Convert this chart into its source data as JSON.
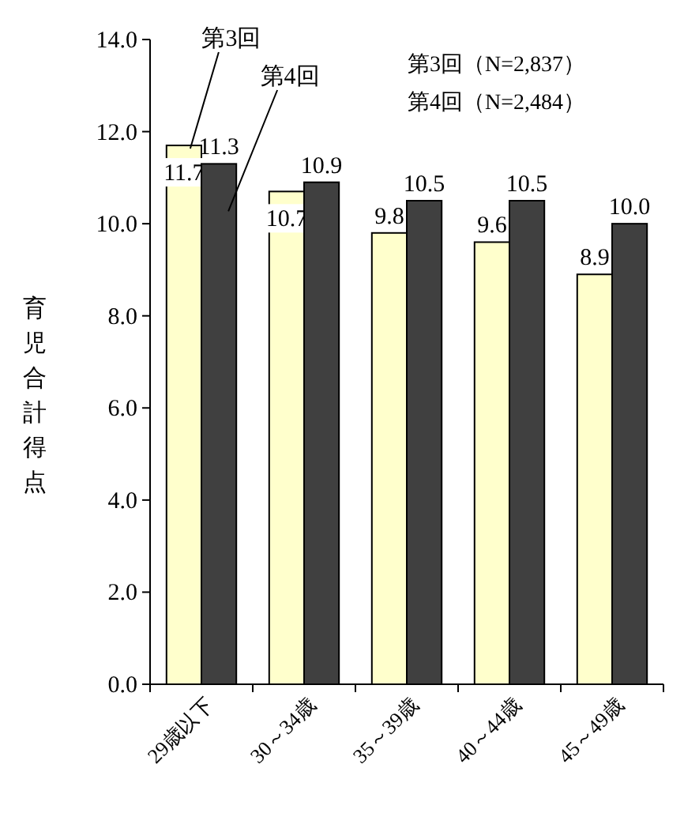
{
  "chart_data": {
    "type": "bar",
    "ylabel": "育児合計得点",
    "categories": [
      "29歳以下",
      "30～34歳",
      "35～39歳",
      "40～44歳",
      "45～49歳"
    ],
    "series": [
      {
        "name": "第3回",
        "color": "#ffffcc",
        "values": [
          11.7,
          10.7,
          9.8,
          9.6,
          8.9
        ],
        "value_labels": [
          "11.7",
          "10.7",
          "9.8",
          "9.6",
          "8.9"
        ]
      },
      {
        "name": "第4回",
        "color": "#404040",
        "values": [
          11.3,
          10.9,
          10.5,
          10.5,
          10.0
        ],
        "value_labels": [
          "11.3",
          "10.9",
          "10.5",
          "10.5",
          "10.0"
        ]
      }
    ],
    "ylim": [
      0,
      14
    ],
    "yticks": [
      {
        "value": 0,
        "label": "0.0"
      },
      {
        "value": 2,
        "label": "2.0"
      },
      {
        "value": 4,
        "label": "4.0"
      },
      {
        "value": 6,
        "label": "6.0"
      },
      {
        "value": 8,
        "label": "8.0"
      },
      {
        "value": 10,
        "label": "10.0"
      },
      {
        "value": 12,
        "label": "12.0"
      },
      {
        "value": 14,
        "label": "14.0"
      }
    ],
    "grid": false,
    "legend": false,
    "annotations": [
      "第3回（N=2,837）",
      "第4回（N=2,484）"
    ]
  }
}
